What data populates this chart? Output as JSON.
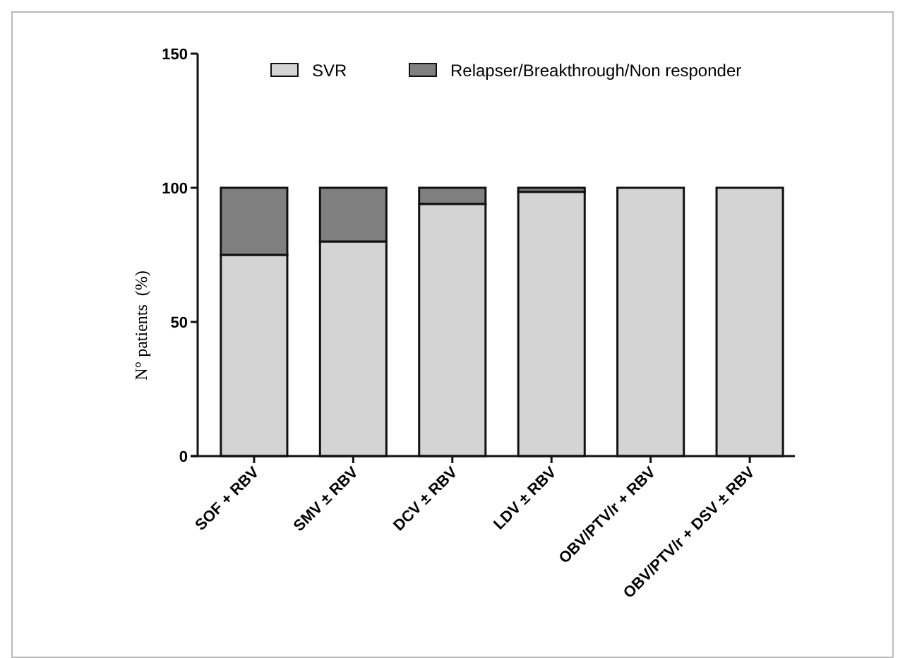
{
  "chart_data": {
    "type": "bar",
    "stacked": true,
    "ylabel": "N° patients  (%)",
    "categories": [
      "SOF + RBV",
      "SMV ± RBV",
      "DCV ± RBV",
      "LDV ± RBV",
      "OBV/PTV/r + RBV",
      "OBV/PTV/r + DSV ± RBV"
    ],
    "series": [
      {
        "name": "SVR",
        "color": "#d4d4d4",
        "values": [
          75,
          80,
          94,
          98.5,
          100,
          100
        ]
      },
      {
        "name": "Relapser/Breakthrough/Non responder",
        "color": "#808080",
        "values": [
          25,
          20,
          6,
          1.5,
          0,
          0
        ]
      }
    ],
    "ylim": [
      0,
      150
    ],
    "yticks": [
      0,
      50,
      100,
      150
    ],
    "grid": false,
    "legend": "top"
  }
}
